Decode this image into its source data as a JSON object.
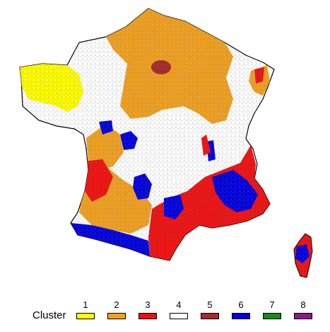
{
  "legend": {
    "title": "Cluster",
    "items": [
      {
        "label": "1",
        "color": "#ffff00"
      },
      {
        "label": "2",
        "color": "#f0a020"
      },
      {
        "label": "3",
        "color": "#ee1111"
      },
      {
        "label": "4",
        "color": "#ffffff"
      },
      {
        "label": "5",
        "color": "#a52a2a"
      },
      {
        "label": "6",
        "color": "#0000dd"
      },
      {
        "label": "7",
        "color": "#1a8a1a"
      },
      {
        "label": "8",
        "color": "#8a1a8a"
      }
    ]
  },
  "map": {
    "region": "France",
    "outline_color": "#000000",
    "commune_line_color": "#555555"
  }
}
